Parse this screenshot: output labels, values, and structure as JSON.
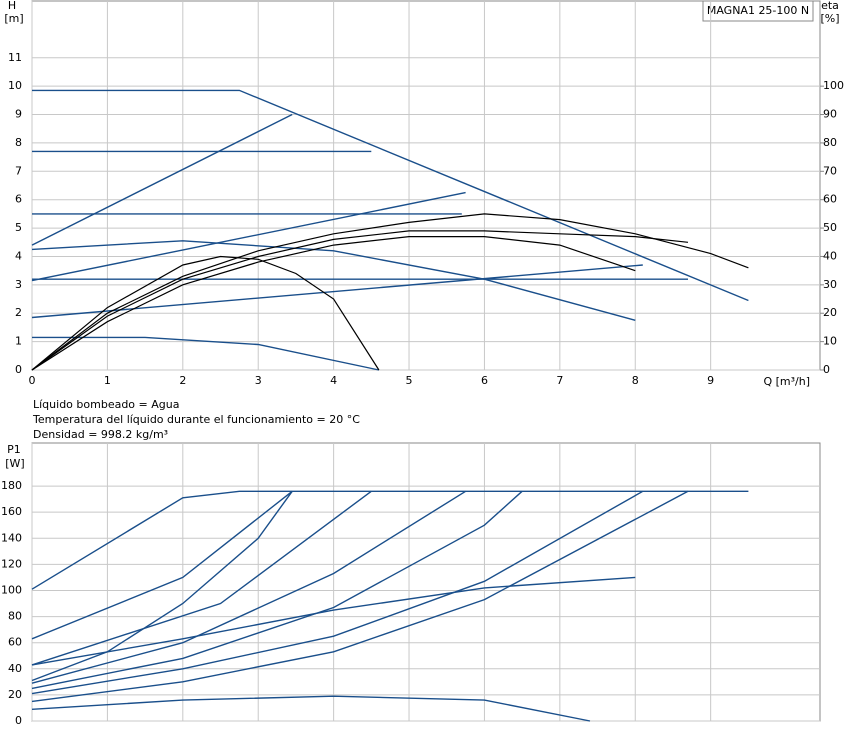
{
  "chart_data": [
    {
      "type": "line",
      "title": "MAGNA1 25-100 N",
      "ylabel": "H",
      "yunit": "[m]",
      "y2label": "eta",
      "y2unit": "[%]",
      "xlabel": "Q [m³/h]",
      "notes": [
        "Líquido bombeado = Agua",
        "Temperatura del líquido durante el funcionamiento = 20 °C",
        "Densidad = 998.2 kg/m³"
      ],
      "xlim": [
        0,
        10.45
      ],
      "xticks": [
        0,
        1,
        2,
        3,
        4,
        5,
        6,
        7,
        8,
        9
      ],
      "ylim": [
        0,
        13
      ],
      "yticks": [
        0,
        1,
        2,
        3,
        4,
        5,
        6,
        7,
        8,
        9,
        10,
        11
      ],
      "y2lim": [
        0,
        130
      ],
      "y2ticks": [
        0,
        10,
        20,
        30,
        40,
        50,
        60,
        70,
        80,
        90,
        100
      ],
      "grid": true,
      "series": [
        {
          "color": "#1a4f8b",
          "x": [
            0,
            2.75,
            9.5
          ],
          "values": [
            9.85,
            9.85,
            2.45
          ]
        },
        {
          "color": "#1a4f8b",
          "x": [
            0,
            4.5
          ],
          "values": [
            7.7,
            7.7
          ]
        },
        {
          "color": "#1a4f8b",
          "x": [
            0,
            3.45
          ],
          "values": [
            4.4,
            9.0
          ]
        },
        {
          "color": "#1a4f8b",
          "x": [
            0,
            5.7
          ],
          "values": [
            5.5,
            5.5
          ]
        },
        {
          "color": "#1a4f8b",
          "x": [
            0,
            5.75
          ],
          "values": [
            3.15,
            6.25
          ]
        },
        {
          "color": "#1a4f8b",
          "x": [
            0,
            8.7
          ],
          "values": [
            3.2,
            3.2
          ]
        },
        {
          "color": "#1a4f8b",
          "x": [
            0,
            8.1
          ],
          "values": [
            1.85,
            3.7
          ]
        },
        {
          "color": "#1a4f8b",
          "x": [
            0,
            2,
            4,
            6,
            8
          ],
          "values": [
            4.25,
            4.55,
            4.2,
            3.2,
            1.75
          ]
        },
        {
          "color": "#1a4f8b",
          "x": [
            0,
            1.5,
            3,
            4.6
          ],
          "values": [
            1.15,
            1.15,
            0.9,
            0
          ]
        },
        {
          "color": "#000000",
          "axis": "y2",
          "x": [
            0,
            1,
            2,
            3,
            4,
            5,
            6,
            7,
            8,
            9,
            9.5
          ],
          "values": [
            0,
            20,
            33,
            42,
            48,
            52,
            55,
            53,
            48,
            41,
            36
          ]
        },
        {
          "color": "#000000",
          "axis": "y2",
          "x": [
            0,
            1,
            2,
            3,
            4,
            5,
            6,
            7,
            8,
            8.7
          ],
          "values": [
            0,
            19,
            32,
            40,
            46,
            49,
            49,
            48,
            47,
            45
          ]
        },
        {
          "color": "#000000",
          "axis": "y2",
          "x": [
            0,
            1,
            2,
            3,
            4,
            5,
            6,
            7,
            8
          ],
          "values": [
            0,
            17,
            30,
            38,
            44,
            47,
            47,
            44,
            35
          ]
        },
        {
          "color": "#000000",
          "axis": "y2",
          "x": [
            0,
            1,
            2,
            2.5,
            3,
            3.5,
            4,
            4.6
          ],
          "values": [
            0,
            22,
            37,
            40,
            39,
            34,
            25,
            0
          ]
        }
      ]
    },
    {
      "type": "line",
      "ylabel": "P1",
      "yunit": "[W]",
      "xlim": [
        0,
        10.45
      ],
      "xticks": [
        0,
        1,
        2,
        3,
        4,
        5,
        6,
        7,
        8,
        9
      ],
      "ylim": [
        0,
        213
      ],
      "yticks": [
        0,
        20,
        40,
        60,
        80,
        100,
        120,
        140,
        160,
        180
      ],
      "grid": true,
      "series": [
        {
          "color": "#1a4f8b",
          "x": [
            0,
            2,
            2.75,
            9.5
          ],
          "values": [
            101,
            171,
            176,
            176
          ]
        },
        {
          "color": "#1a4f8b",
          "x": [
            0,
            2,
            3.45
          ],
          "values": [
            63,
            110,
            176
          ]
        },
        {
          "color": "#1a4f8b",
          "x": [
            0,
            2.5,
            4.5
          ],
          "values": [
            43,
            90,
            176
          ]
        },
        {
          "color": "#1a4f8b",
          "x": [
            0,
            1,
            2,
            3,
            3.45
          ],
          "values": [
            31,
            53,
            90,
            140,
            176
          ]
        },
        {
          "color": "#1a4f8b",
          "x": [
            0,
            2,
            4,
            5.75
          ],
          "values": [
            29,
            60,
            113,
            176
          ]
        },
        {
          "color": "#1a4f8b",
          "x": [
            0,
            2,
            4,
            6,
            6.5
          ],
          "values": [
            25,
            48,
            87,
            150,
            176
          ]
        },
        {
          "color": "#1a4f8b",
          "x": [
            0,
            2,
            4,
            6,
            8.1
          ],
          "values": [
            21,
            40,
            65,
            107,
            176
          ]
        },
        {
          "color": "#1a4f8b",
          "x": [
            0,
            2,
            4,
            6,
            8.7
          ],
          "values": [
            15,
            30,
            53,
            93,
            176
          ]
        },
        {
          "color": "#1a4f8b",
          "x": [
            0,
            2,
            4,
            6,
            8
          ],
          "values": [
            43,
            63,
            85,
            102,
            110
          ]
        },
        {
          "color": "#1a4f8b",
          "x": [
            0,
            2,
            4,
            6,
            7.4
          ],
          "values": [
            9,
            16,
            19,
            16,
            0
          ]
        }
      ]
    }
  ]
}
